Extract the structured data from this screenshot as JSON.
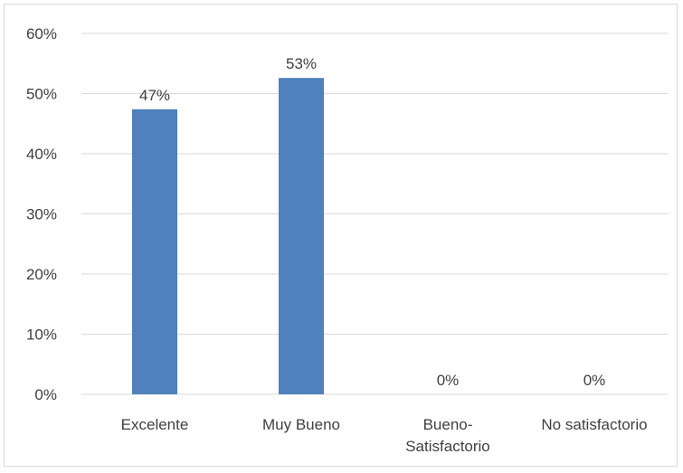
{
  "chart_data": {
    "type": "bar",
    "categories": [
      [
        "Excelente"
      ],
      [
        "Muy Bueno"
      ],
      [
        "Bueno-",
        "Satisfactorio"
      ],
      [
        "No satisfactorio"
      ]
    ],
    "values": [
      47.4,
      52.6,
      0,
      0
    ],
    "data_labels": [
      "47%",
      "53%",
      "0%",
      "0%"
    ],
    "y_ticks": [
      "0%",
      "10%",
      "20%",
      "30%",
      "40%",
      "50%",
      "60%"
    ],
    "ylim": [
      0,
      60
    ],
    "grid": true,
    "bar_color": "#4f81bd",
    "gridline_color": "#d9d9d9",
    "text_color": "#404040"
  }
}
